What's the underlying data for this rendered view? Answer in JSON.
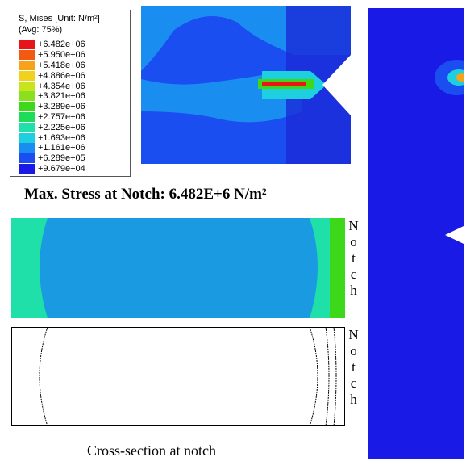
{
  "legend": {
    "title": "S, Mises",
    "unit": "[Unit: N/m²]",
    "average": "(Avg: 75%)",
    "entries": [
      {
        "label": "+6.482e+06",
        "color": "#e8141a"
      },
      {
        "label": "+5.950e+06",
        "color": "#f25a12"
      },
      {
        "label": "+5.418e+06",
        "color": "#f7a21a"
      },
      {
        "label": "+4.886e+06",
        "color": "#f0d21c"
      },
      {
        "label": "+4.354e+06",
        "color": "#c8e41e"
      },
      {
        "label": "+3.821e+06",
        "color": "#8ae01c"
      },
      {
        "label": "+3.289e+06",
        "color": "#3ed81a"
      },
      {
        "label": "+2.757e+06",
        "color": "#1edc5a"
      },
      {
        "label": "+2.225e+06",
        "color": "#1ee0a8"
      },
      {
        "label": "+1.693e+06",
        "color": "#1ecfe0"
      },
      {
        "label": "+1.161e+06",
        "color": "#1a8ef0"
      },
      {
        "label": "+6.289e+05",
        "color": "#1a4ef0"
      },
      {
        "label": "+9.679e+04",
        "color": "#1a1ae6"
      }
    ]
  },
  "headline": "Max. Stress at Notch: 6.482E+6 N/m²",
  "notch_labels": [
    "Notch",
    "Notch"
  ],
  "caption": "Cross-section at notch"
}
